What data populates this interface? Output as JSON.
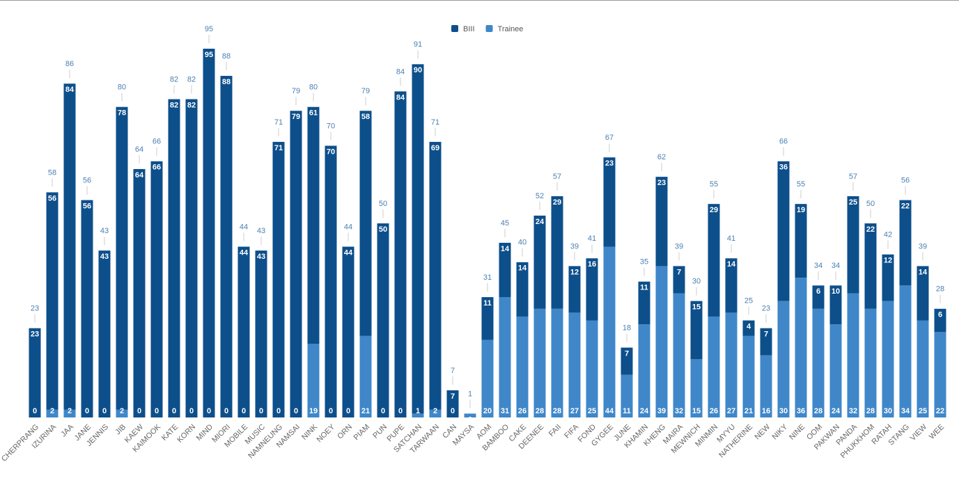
{
  "chart_data": {
    "type": "stacked_bar",
    "categories": [
      "CHERPRANG",
      "IZURINA",
      "JAA",
      "JANE",
      "JENNIS",
      "JIB",
      "KAEW",
      "KAIMOOK",
      "KATE",
      "KORN",
      "MIND",
      "MIORI",
      "MOBILE",
      "MUSIC",
      "NAMNEUNG",
      "NAMSAI",
      "NINK",
      "NOEY",
      "ORN",
      "PIAM",
      "PUN",
      "PUPE",
      "SATCHAN",
      "TARWAAN",
      "CAN",
      "MAYSA",
      "AOM",
      "BAMBOO",
      "CAKE",
      "DEENEE",
      "FAII",
      "FIFA",
      "FOND",
      "GYGEE",
      "JUNE",
      "KHAMIN",
      "KHENG",
      "MAIRA",
      "MEWNICH",
      "MINMIN",
      "MYYU",
      "NATHERINE",
      "NEW",
      "NIKY",
      "NINE",
      "OOM",
      "PAKWAN",
      "PANDA",
      "PHUKKHOM",
      "RATAH",
      "STANG",
      "VIEW",
      "WEE"
    ],
    "series": [
      {
        "name": "BIII",
        "color": "#0d4f8b",
        "values": [
          23,
          56,
          84,
          56,
          43,
          78,
          64,
          66,
          82,
          82,
          95,
          88,
          44,
          43,
          71,
          79,
          61,
          70,
          44,
          58,
          50,
          84,
          90,
          69,
          7,
          0,
          11,
          14,
          14,
          24,
          29,
          12,
          16,
          23,
          7,
          11,
          23,
          7,
          15,
          29,
          14,
          4,
          7,
          36,
          19,
          6,
          10,
          25,
          22,
          12,
          22,
          14,
          6
        ]
      },
      {
        "name": "Trainee",
        "color": "#3f87c9",
        "values": [
          0,
          2,
          2,
          0,
          0,
          2,
          0,
          0,
          0,
          0,
          0,
          0,
          0,
          0,
          0,
          0,
          19,
          0,
          0,
          21,
          0,
          0,
          1,
          2,
          0,
          1,
          20,
          31,
          26,
          28,
          28,
          27,
          25,
          44,
          11,
          24,
          39,
          32,
          15,
          26,
          27,
          21,
          16,
          30,
          36,
          28,
          24,
          32,
          28,
          30,
          34,
          25,
          22
        ]
      }
    ],
    "totals": [
      23,
      58,
      86,
      56,
      43,
      80,
      64,
      66,
      82,
      82,
      95,
      88,
      44,
      43,
      71,
      79,
      80,
      70,
      44,
      79,
      50,
      84,
      91,
      71,
      7,
      1,
      31,
      45,
      40,
      52,
      57,
      39,
      41,
      67,
      18,
      35,
      62,
      39,
      30,
      55,
      41,
      25,
      23,
      66,
      55,
      34,
      34,
      57,
      50,
      42,
      56,
      39,
      28
    ],
    "ylim": [
      0,
      95
    ],
    "legend": "top"
  }
}
